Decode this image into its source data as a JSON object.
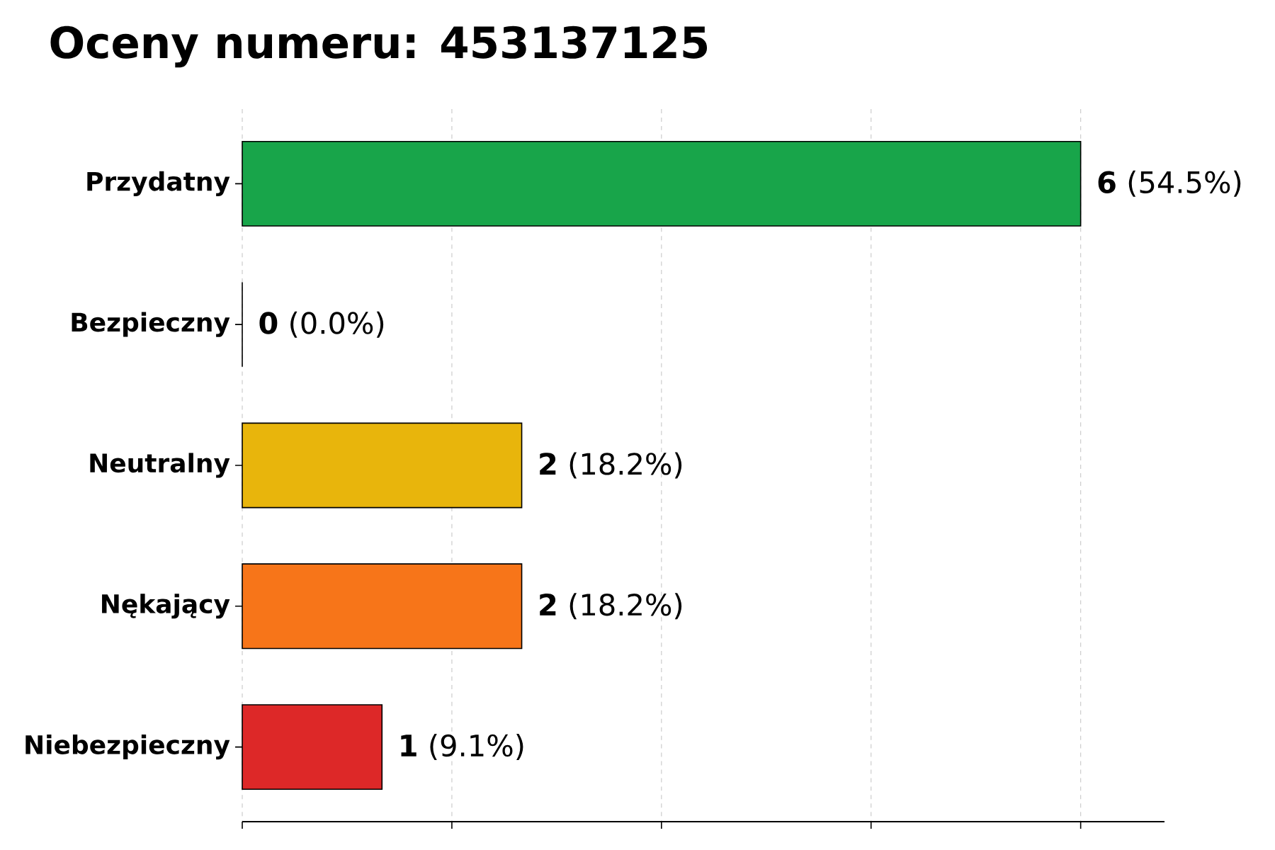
{
  "chart_data": {
    "type": "bar",
    "orientation": "horizontal",
    "title": "Oceny numeru: 453137125",
    "categories": [
      "Przydatny",
      "Bezpieczny",
      "Neutralny",
      "Nękający",
      "Niebezpieczny"
    ],
    "values": [
      6,
      0,
      2,
      2,
      1
    ],
    "colors": [
      "#18a54a",
      "#2b7bba",
      "#e8b50c",
      "#f77519",
      "#dd2828"
    ],
    "value_labels": [
      "**6** (54.5%)",
      "**0** (0.0%)",
      "**2** (18.2%)",
      "**2** (18.2%)",
      "**1** (9.1%)"
    ],
    "xlim": [
      0,
      6.6
    ],
    "xticks": [
      {
        "value": 0,
        "label": null
      },
      {
        "value": 1.5,
        "label": null
      },
      {
        "value": 3,
        "label": null
      },
      {
        "value": 4.5,
        "label": null
      },
      {
        "value": 6,
        "label": null
      }
    ],
    "grid": "x",
    "tick_labels": "y"
  }
}
